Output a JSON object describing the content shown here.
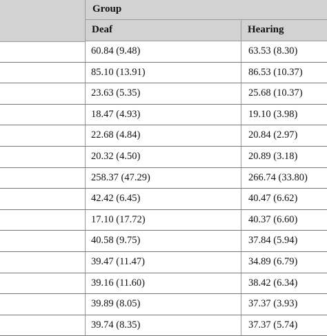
{
  "table": {
    "group_label": "Group",
    "columns": [
      "Deaf",
      "Hearing"
    ],
    "rows": [
      {
        "deaf": "60.84 (9.48)",
        "hearing": "63.53 (8.30)"
      },
      {
        "deaf": "85.10 (13.91)",
        "hearing": "86.53 (10.37)"
      },
      {
        "deaf": "23.63 (5.35)",
        "hearing": "25.68 (10.37)"
      },
      {
        "deaf": "18.47 (4.93)",
        "hearing": "19.10 (3.98)"
      },
      {
        "deaf": "22.68 (4.84)",
        "hearing": "20.84 (2.97)"
      },
      {
        "deaf": "20.32 (4.50)",
        "hearing": "20.89 (3.18)"
      },
      {
        "deaf": "258.37 (47.29)",
        "hearing": "266.74 (33.80)"
      },
      {
        "deaf": "42.42 (6.45)",
        "hearing": "40.47 (6.62)"
      },
      {
        "deaf": "17.10 (17.72)",
        "hearing": "40.37 (6.60)"
      },
      {
        "deaf": "40.58 (9.75)",
        "hearing": "37.84 (5.94)"
      },
      {
        "deaf": "39.47 (11.47)",
        "hearing": "34.89 (6.79)"
      },
      {
        "deaf": "39.16 (11.60)",
        "hearing": "38.42 (6.34)"
      },
      {
        "deaf": "39.89 (8.05)",
        "hearing": "37.37 (3.93)"
      },
      {
        "deaf": "39.74 (8.35)",
        "hearing": "37.37 (5.74)"
      }
    ]
  }
}
